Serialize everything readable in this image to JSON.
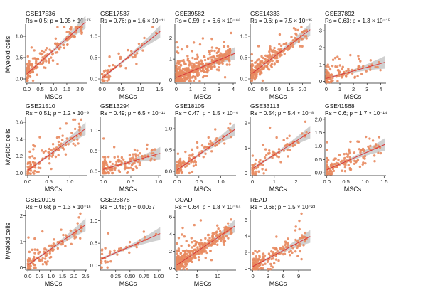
{
  "figure": {
    "point_color": "#e8895f",
    "line_color": "#d9383a",
    "band_color": "#c8c8c8",
    "y_label": "Myeloid cells",
    "x_label": "MSCs"
  },
  "chart_data": [
    {
      "type": "scatter",
      "title": "GSE17536",
      "stat": "Rs = 0.5; p = 1.05 × 10⁻⁷⁵",
      "xlabel": "MSCs",
      "ylabel": "Myeloid cells",
      "xlim": [
        -0.05,
        2.25
      ],
      "ylim": [
        -0.1,
        1.25
      ],
      "xticks": [
        "0.0",
        "0.5",
        "1.0",
        "1.5",
        "2.0"
      ],
      "yticks": [
        "0.0",
        "0.5",
        "1.0"
      ],
      "fit": {
        "slope": 0.55,
        "intercept": 0.12
      },
      "n": 160,
      "seed": 1
    },
    {
      "type": "scatter",
      "title": "GSE17537",
      "stat": "Rs = 0.76; p = 1.6 × 10⁻¹¹",
      "xlabel": "MSCs",
      "ylabel": "",
      "xlim": [
        -0.05,
        1.55
      ],
      "ylim": [
        -0.1,
        1.25
      ],
      "xticks": [
        "0.0",
        "0.5",
        "1.0",
        "1.5"
      ],
      "yticks": [
        "0.0",
        "0.5",
        "1.0"
      ],
      "fit": {
        "slope": 0.72,
        "intercept": 0.02
      },
      "n": 55,
      "seed": 2
    },
    {
      "type": "scatter",
      "title": "GSE39582",
      "stat": "Rs = 0.59; p = 6.6 × 10⁻⁶⁶",
      "xlabel": "MSCs",
      "ylabel": "",
      "xlim": [
        -0.1,
        4.2
      ],
      "ylim": [
        -0.15,
        2.6
      ],
      "xticks": [
        "0",
        "1",
        "2",
        "3",
        "4"
      ],
      "yticks": [
        "0",
        "1",
        "2"
      ],
      "fit": {
        "slope": 0.28,
        "intercept": 0.12
      },
      "n": 420,
      "seed": 3
    },
    {
      "type": "scatter",
      "title": "GSE14333",
      "stat": "Rs = 0.6; p = 7.5 × 10⁻³⁵",
      "xlabel": "MSCs",
      "ylabel": "",
      "xlim": [
        -0.05,
        2.35
      ],
      "ylim": [
        -0.1,
        1.25
      ],
      "xticks": [
        "0.0",
        "0.5",
        "1.0",
        "1.5",
        "2.0"
      ],
      "yticks": [
        "0.0",
        "0.5",
        "1.0"
      ],
      "fit": {
        "slope": 0.45,
        "intercept": 0.12
      },
      "n": 230,
      "seed": 4
    },
    {
      "type": "scatter",
      "title": "GSE37892",
      "stat": "Rs = 0.63; p = 1.3 × 10⁻¹⁵",
      "xlabel": "MSCs",
      "ylabel": "",
      "xlim": [
        -0.1,
        4.4
      ],
      "ylim": [
        -0.1,
        3.3
      ],
      "xticks": [
        "0",
        "1",
        "2",
        "3",
        "4"
      ],
      "yticks": [
        "0",
        "1",
        "2",
        "3"
      ],
      "fit": {
        "slope": 0.22,
        "intercept": 0.18
      },
      "n": 110,
      "seed": 5
    },
    {
      "type": "scatter",
      "title": "GSE21510",
      "stat": "Rs = 0.51; p = 1.2 × 10⁻⁹",
      "xlabel": "MSCs",
      "ylabel": "Myeloid cells",
      "xlim": [
        -0.05,
        1.4
      ],
      "ylim": [
        -0.03,
        0.65
      ],
      "xticks": [
        "0.0",
        "0.5",
        "1.0"
      ],
      "yticks": [
        "0.0",
        "0.2",
        "0.4",
        "0.6"
      ],
      "fit": {
        "slope": 0.36,
        "intercept": 0.03
      },
      "n": 120,
      "seed": 6
    },
    {
      "type": "scatter",
      "title": "GSE13294",
      "stat": "Rs = 0.49; p = 6.5 × 10⁻¹¹",
      "xlabel": "MSCs",
      "ylabel": "",
      "xlim": [
        -0.05,
        1.05
      ],
      "ylim": [
        -0.1,
        1.3
      ],
      "xticks": [
        "0.0",
        "0.5",
        "1.0"
      ],
      "yticks": [
        "0.0",
        "0.5",
        "1.0"
      ],
      "fit": {
        "slope": 0.38,
        "intercept": 0.05
      },
      "n": 150,
      "seed": 7
    },
    {
      "type": "scatter",
      "title": "GSE18105",
      "stat": "Rs = 0.47; p = 1.5 × 10⁻⁶",
      "xlabel": "MSCs",
      "ylabel": "",
      "xlim": [
        -0.05,
        1.35
      ],
      "ylim": [
        -0.1,
        1.25
      ],
      "xticks": [
        "0.0",
        "0.5",
        "1.0"
      ],
      "yticks": [
        "0.0",
        "0.5",
        "1.0"
      ],
      "fit": {
        "slope": 0.72,
        "intercept": 0.03
      },
      "n": 120,
      "seed": 8
    },
    {
      "type": "scatter",
      "title": "GSE33113",
      "stat": "Rs = 0.54; p = 5.4 × 10⁻⁸",
      "xlabel": "MSCs",
      "ylabel": "",
      "xlim": [
        -0.1,
        2.7
      ],
      "ylim": [
        -0.1,
        2.2
      ],
      "xticks": [
        "0",
        "1",
        "2"
      ],
      "yticks": [
        "0",
        "1",
        "2"
      ],
      "fit": {
        "slope": 0.55,
        "intercept": 0.18
      },
      "n": 90,
      "seed": 9
    },
    {
      "type": "scatter",
      "title": "GSE41568",
      "stat": "Rs = 0.6; p = 1.7 × 10⁻¹⁴",
      "xlabel": "MSCs",
      "ylabel": "",
      "xlim": [
        -0.05,
        1.55
      ],
      "ylim": [
        -0.1,
        2.05
      ],
      "xticks": [
        "0.0",
        "0.5",
        "1.0",
        "1.5"
      ],
      "yticks": [
        "0.0",
        "0.5",
        "1.0",
        "1.5",
        "2.0"
      ],
      "fit": {
        "slope": 0.62,
        "intercept": 0.12
      },
      "n": 140,
      "seed": 10
    },
    {
      "type": "scatter",
      "title": "GSE20916",
      "stat": "Rs = 0.68; p = 1.3 × 10⁻¹⁶",
      "xlabel": "MSCs",
      "ylabel": "Myeloid cells",
      "xlim": [
        -0.1,
        2.55
      ],
      "ylim": [
        -0.1,
        2.15
      ],
      "xticks": [
        "0.0",
        "0.5",
        "1.0",
        "1.5",
        "2.0",
        "2.5"
      ],
      "yticks": [
        "0",
        "1",
        "2"
      ],
      "fit": {
        "slope": 0.62,
        "intercept": 0.1
      },
      "n": 110,
      "seed": 11
    },
    {
      "type": "scatter",
      "title": "GSE23878",
      "stat": "Rs = 0.48; p = 0.0037",
      "xlabel": "MSCs",
      "ylabel": "",
      "xlim": [
        -0.02,
        1.05
      ],
      "ylim": [
        -0.1,
        1.2
      ],
      "xticks": [
        "0.25",
        "0.50",
        "0.75",
        "1.00"
      ],
      "xtickvals": [
        0.25,
        0.5,
        0.75,
        1.0
      ],
      "yticks": [
        "0.0",
        "0.5",
        "1.0"
      ],
      "fit": {
        "slope": 0.55,
        "intercept": 0.15
      },
      "n": 40,
      "seed": 12
    },
    {
      "type": "scatter",
      "title": "COAD",
      "stat": "Rs = 0.64; p = 1.8 × 10⁻⁶⁴",
      "xlabel": "MSCs",
      "ylabel": "",
      "xlim": [
        -0.5,
        14.5
      ],
      "ylim": [
        -0.2,
        6.6
      ],
      "xticks": [
        "0",
        "5",
        "10"
      ],
      "yticks": [
        "0",
        "2",
        "4",
        "6"
      ],
      "fit": {
        "slope": 0.32,
        "intercept": 0.4
      },
      "n": 380,
      "seed": 13
    },
    {
      "type": "scatter",
      "title": "READ",
      "stat": "Rs = 0.68; p = 1.5 × 10⁻²³",
      "xlabel": "MSCs",
      "ylabel": "",
      "xlim": [
        -0.5,
        11.5
      ],
      "ylim": [
        -0.2,
        7.0
      ],
      "xticks": [
        "0",
        "3",
        "6",
        "9"
      ],
      "yticks": [
        "0",
        "2",
        "4",
        "6"
      ],
      "fit": {
        "slope": 0.33,
        "intercept": 0.25
      },
      "n": 160,
      "seed": 14
    }
  ]
}
